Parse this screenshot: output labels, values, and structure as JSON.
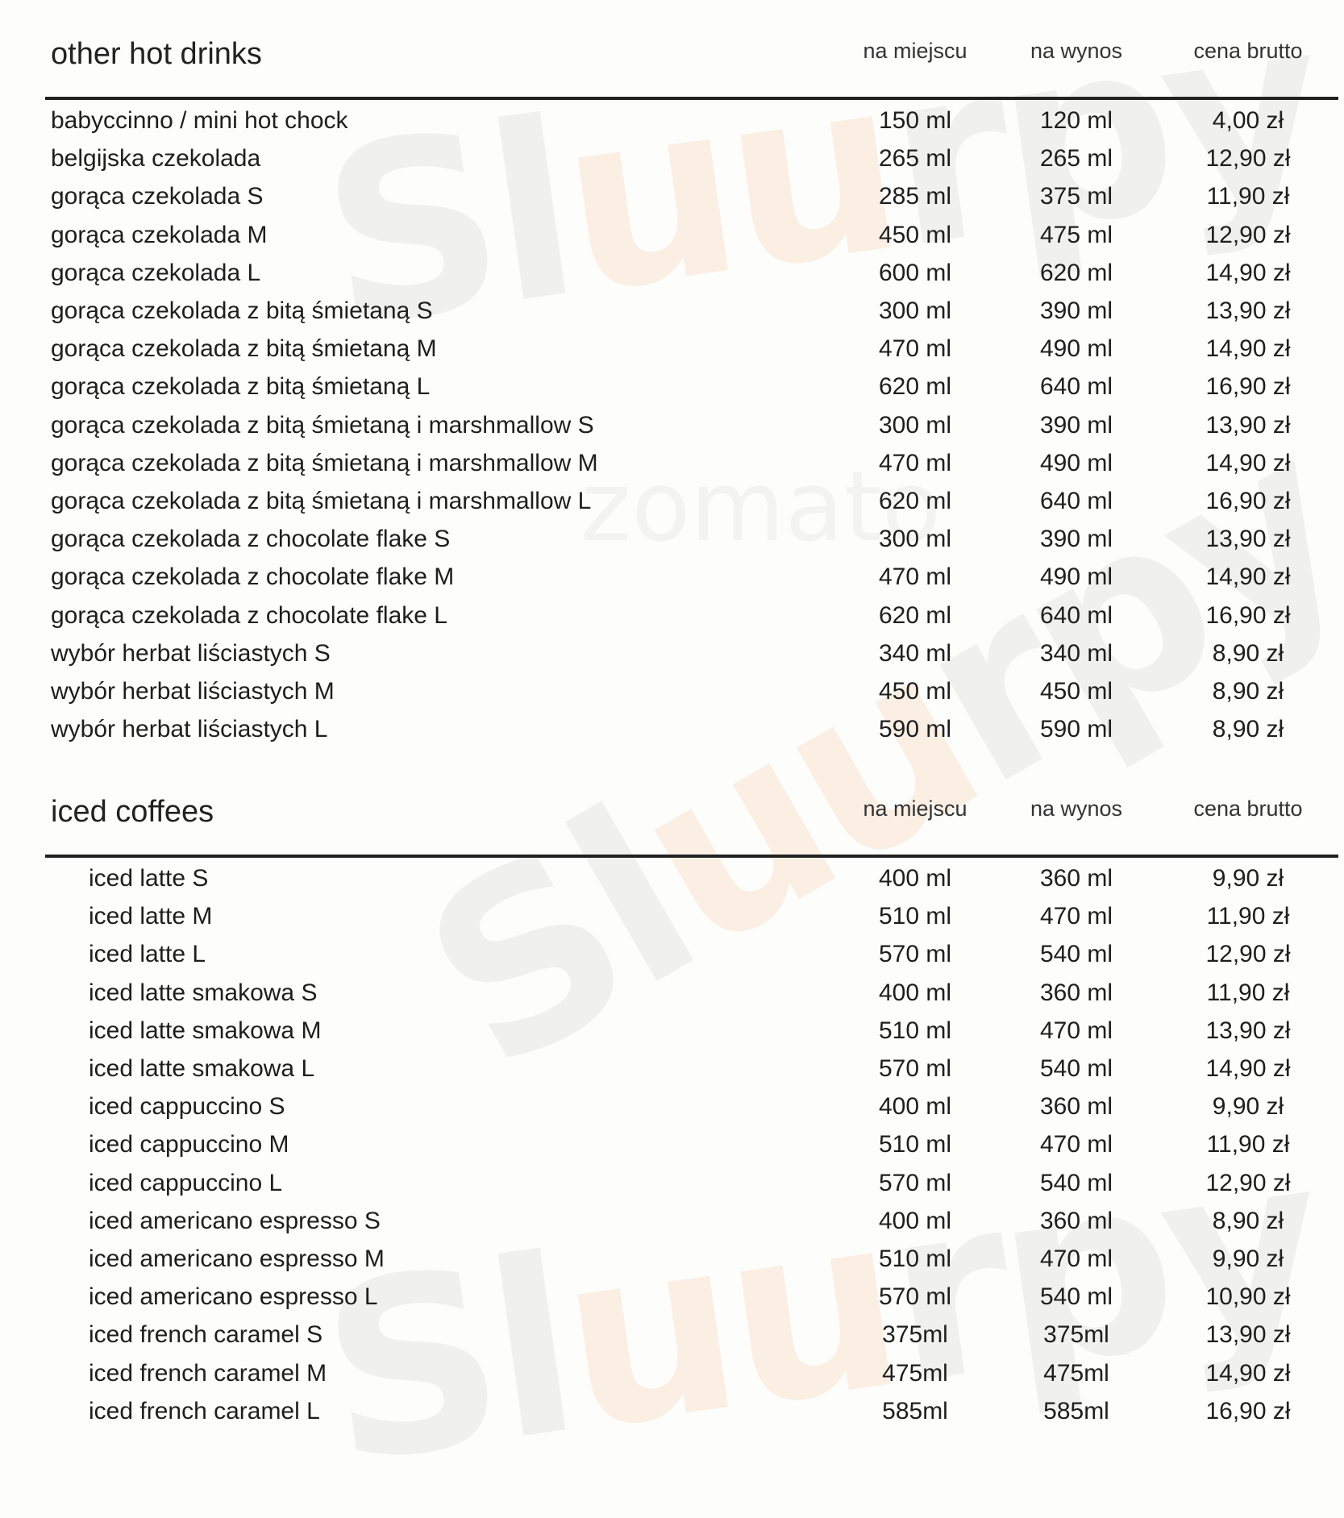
{
  "watermark": {
    "brand": "Sluurpy",
    "secondary": "zomato"
  },
  "sections": [
    {
      "title": "other hot drinks",
      "columns": [
        "na miejscu",
        "na wynos",
        "cena brutto"
      ],
      "rows": [
        [
          "babyccinno / mini hot chock",
          "150 ml",
          "120 ml",
          "4,00 zł"
        ],
        [
          "belgijska czekolada",
          "265 ml",
          "265 ml",
          "12,90 zł"
        ],
        [
          "gorąca czekolada S",
          "285 ml",
          "375 ml",
          "11,90 zł"
        ],
        [
          "gorąca czekolada M",
          "450 ml",
          "475 ml",
          "12,90 zł"
        ],
        [
          "gorąca czekolada L",
          "600 ml",
          "620 ml",
          "14,90 zł"
        ],
        [
          "gorąca czekolada z bitą śmietaną S",
          "300 ml",
          "390 ml",
          "13,90 zł"
        ],
        [
          "gorąca czekolada z bitą śmietaną M",
          "470 ml",
          "490 ml",
          "14,90 zł"
        ],
        [
          "gorąca czekolada z bitą śmietaną L",
          "620 ml",
          "640 ml",
          "16,90 zł"
        ],
        [
          "gorąca czekolada z bitą śmietaną i marshmallow S",
          "300 ml",
          "390 ml",
          "13,90 zł"
        ],
        [
          "gorąca czekolada z bitą śmietaną i marshmallow M",
          "470 ml",
          "490 ml",
          "14,90 zł"
        ],
        [
          "gorąca czekolada z bitą śmietaną i marshmallow L",
          "620 ml",
          "640 ml",
          "16,90 zł"
        ],
        [
          "gorąca czekolada z chocolate flake S",
          "300 ml",
          "390 ml",
          "13,90 zł"
        ],
        [
          "gorąca czekolada z chocolate flake M",
          "470 ml",
          "490 ml",
          "14,90 zł"
        ],
        [
          "gorąca czekolada z chocolate flake L",
          "620 ml",
          "640 ml",
          "16,90 zł"
        ],
        [
          "wybór herbat liściastych S",
          "340 ml",
          "340 ml",
          "8,90 zł"
        ],
        [
          "wybór herbat liściastych M",
          "450 ml",
          "450 ml",
          "8,90 zł"
        ],
        [
          "wybór herbat liściastych L",
          "590 ml",
          "590 ml",
          "8,90 zł"
        ]
      ]
    },
    {
      "title": "iced coffees",
      "columns": [
        "na miejscu",
        "na wynos",
        "cena brutto"
      ],
      "rows": [
        [
          "iced latte S",
          "400 ml",
          "360 ml",
          "9,90 zł"
        ],
        [
          "iced latte M",
          "510 ml",
          "470 ml",
          "11,90 zł"
        ],
        [
          "iced latte L",
          "570 ml",
          "540 ml",
          "12,90 zł"
        ],
        [
          "iced latte smakowa S",
          "400 ml",
          "360 ml",
          "11,90 zł"
        ],
        [
          "iced latte smakowa M",
          "510 ml",
          "470 ml",
          "13,90 zł"
        ],
        [
          "iced latte smakowa L",
          "570 ml",
          "540 ml",
          "14,90 zł"
        ],
        [
          "iced cappuccino S",
          "400 ml",
          "360 ml",
          "9,90 zł"
        ],
        [
          "iced cappuccino M",
          "510 ml",
          "470 ml",
          "11,90 zł"
        ],
        [
          "iced cappuccino L",
          "570 ml",
          "540 ml",
          "12,90 zł"
        ],
        [
          "iced americano espresso S",
          "400 ml",
          "360 ml",
          "8,90 zł"
        ],
        [
          "iced americano espresso M",
          "510 ml",
          "470 ml",
          "9,90 zł"
        ],
        [
          "iced americano espresso L",
          "570 ml",
          "540 ml",
          "10,90 zł"
        ],
        [
          "iced french caramel S",
          "375ml",
          "375ml",
          "13,90 zł"
        ],
        [
          "iced french caramel M",
          "475ml",
          "475ml",
          "14,90 zł"
        ],
        [
          "iced french caramel L",
          "585ml",
          "585ml",
          "16,90 zł"
        ]
      ]
    }
  ]
}
